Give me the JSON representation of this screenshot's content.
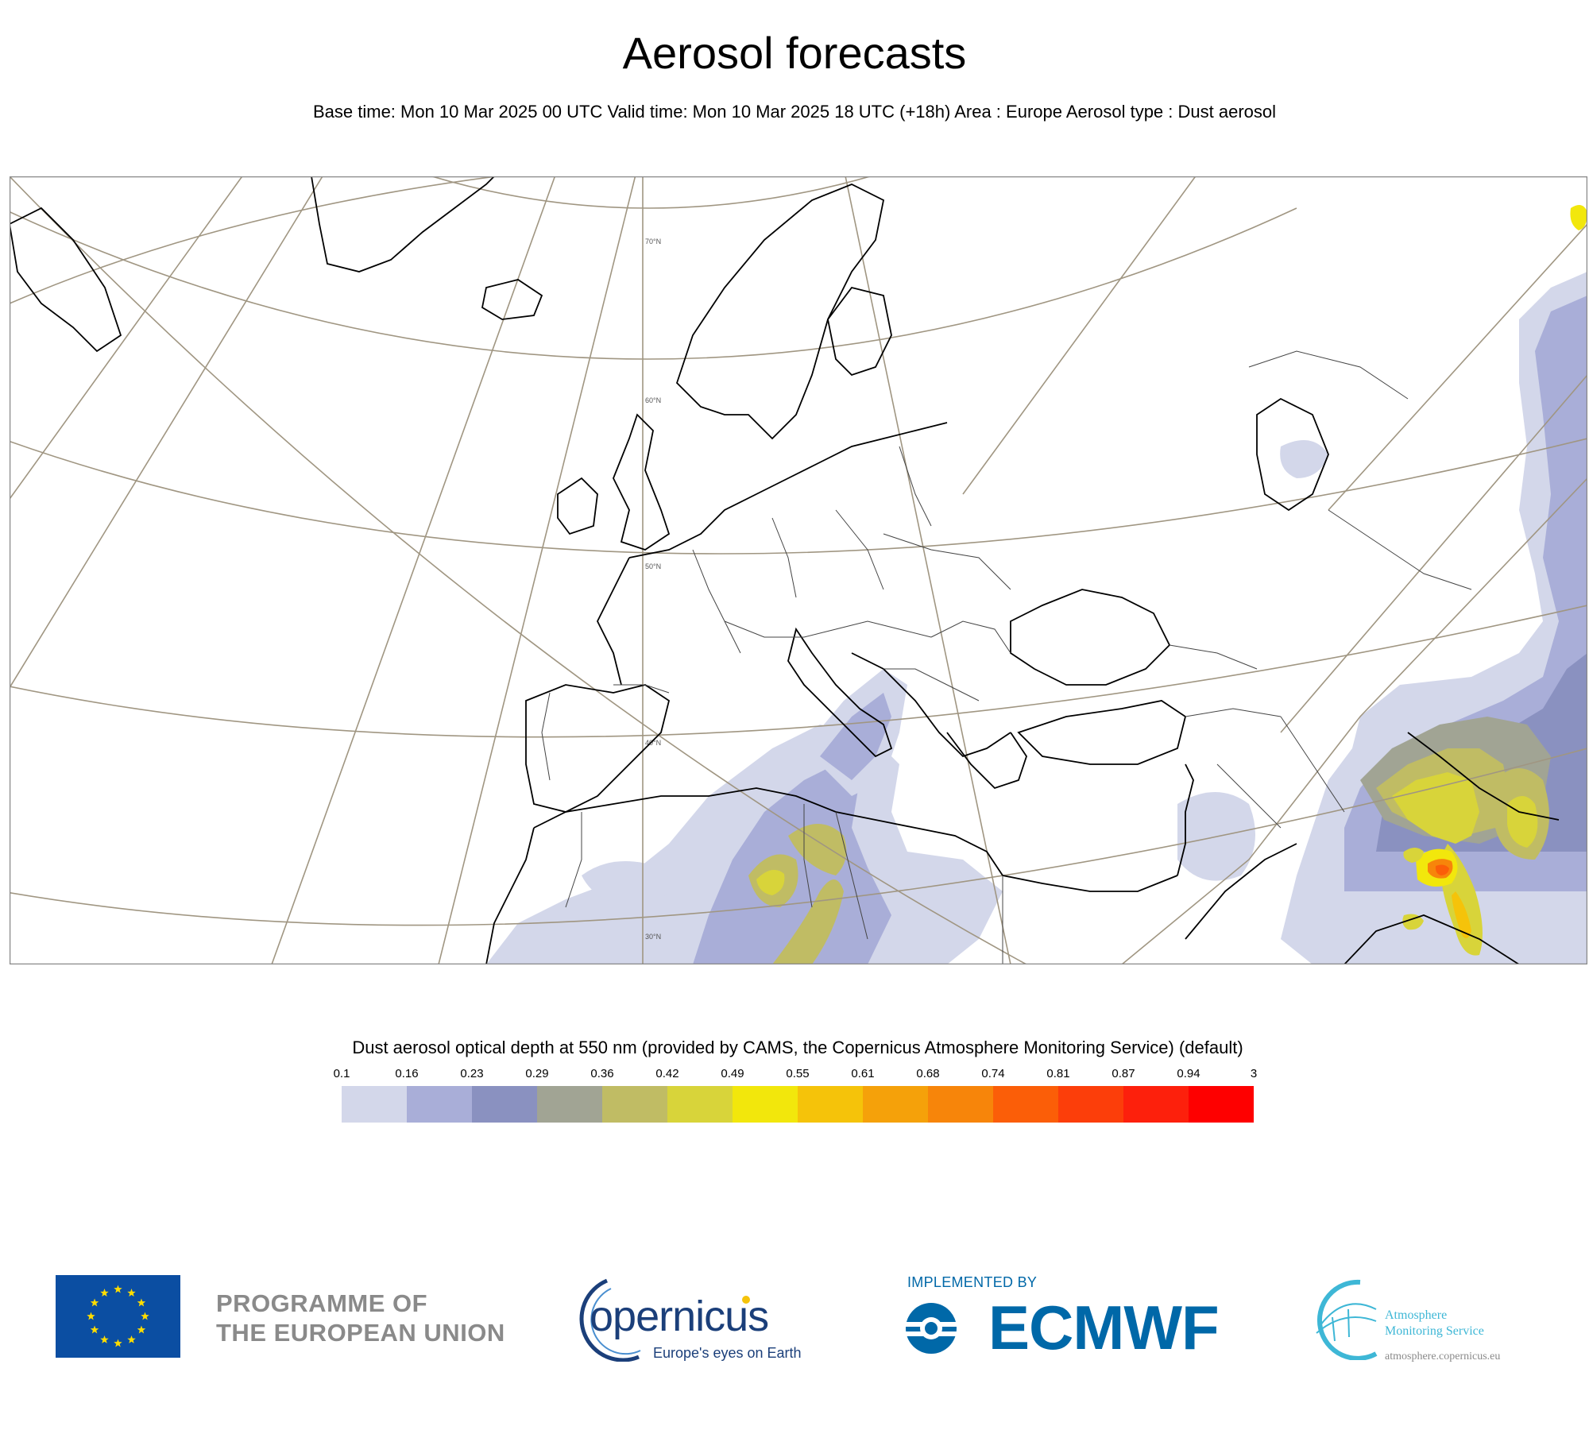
{
  "header": {
    "title": "Aerosol forecasts",
    "subtitle": "Base time: Mon 10 Mar 2025 00 UTC Valid time: Mon 10 Mar 2025 18 UTC (+18h) Area : Europe Aerosol type : Dust aerosol"
  },
  "map": {
    "latitude_labels": [
      "70°N",
      "60°N",
      "50°N",
      "40°N",
      "30°N"
    ],
    "colors": {
      "land_outline": "#000000",
      "graticule": "#a09682",
      "frame": "#888888"
    }
  },
  "legend": {
    "title": "Dust aerosol optical depth at 550 nm (provided by CAMS, the Copernicus Atmosphere Monitoring Service) (default)",
    "ticks": [
      "0.1",
      "0.16",
      "0.23",
      "0.29",
      "0.36",
      "0.42",
      "0.49",
      "0.55",
      "0.61",
      "0.68",
      "0.74",
      "0.81",
      "0.87",
      "0.94",
      "3"
    ],
    "colors": [
      "#d3d7ea",
      "#a9aed8",
      "#8a91c0",
      "#a1a494",
      "#c0bc64",
      "#d8d43a",
      "#f2e70c",
      "#f5c30a",
      "#f5a10a",
      "#f7850a",
      "#fb5e08",
      "#fc3e0a",
      "#fd200c",
      "#fe0000"
    ]
  },
  "footer": {
    "eu_text_line1": "PROGRAMME OF",
    "eu_text_line2": "THE EUROPEAN UNION",
    "copernicus_word": "opernicus",
    "copernicus_tagline": "Europe's eyes on Earth",
    "implemented_by": "IMPLEMENTED BY",
    "ecmwf": "ECMWF",
    "ams_line1": "Atmosphere",
    "ams_line2": "Monitoring Service",
    "ams_url": "atmosphere.copernicus.eu",
    "colors": {
      "eu_blue": "#0b4ea2",
      "eu_star": "#ffdd00",
      "copernicus_blue": "#1b3f7a",
      "ecmwf_blue": "#0068a8",
      "ams_cyan": "#3eb7d6"
    }
  }
}
